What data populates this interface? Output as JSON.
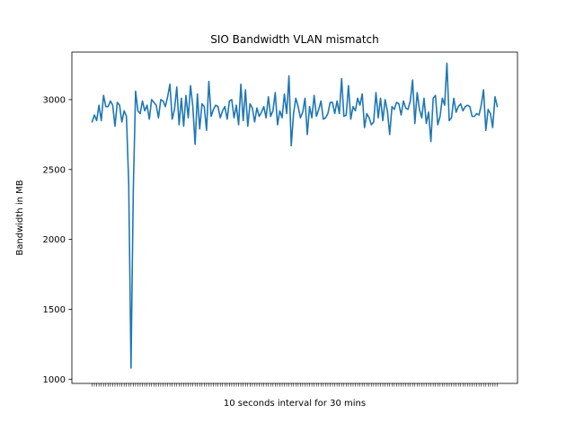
{
  "chart_data": {
    "type": "line",
    "title": "SIO Bandwidth VLAN mismatch",
    "xlabel": "10 seconds interval for 30 mins",
    "ylabel": "Bandwidth in MB",
    "xtick_labels_visible": false,
    "ylim": [
      970,
      3340
    ],
    "yticks": [
      1000,
      1500,
      2000,
      2500,
      3000
    ],
    "grid": false,
    "legend": "none",
    "colors": {
      "line": "#1f77b4",
      "axes": "#000000",
      "background": "#ffffff"
    },
    "series": [
      {
        "values": [
          2840,
          2890,
          2850,
          2960,
          2850,
          3030,
          2950,
          2950,
          2990,
          2960,
          2810,
          2980,
          2960,
          2840,
          2920,
          2880,
          2400,
          1080,
          2350,
          3060,
          2920,
          2900,
          2990,
          2920,
          2960,
          2860,
          3000,
          2980,
          2960,
          2870,
          3000,
          2990,
          2950,
          3020,
          3110,
          2860,
          2930,
          3090,
          2820,
          3010,
          2810,
          3030,
          2870,
          3100,
          2950,
          2680,
          3040,
          2790,
          2970,
          2950,
          2780,
          3130,
          2880,
          2930,
          2960,
          2950,
          2870,
          2920,
          2950,
          2860,
          2990,
          3000,
          2870,
          2960,
          2820,
          3110,
          2850,
          3070,
          2810,
          2970,
          2940,
          2840,
          2940,
          2880,
          2910,
          2950,
          2870,
          3020,
          2880,
          2920,
          3050,
          2820,
          2920,
          2870,
          3040,
          2900,
          3170,
          2670,
          2900,
          3010,
          2950,
          2870,
          2910,
          3010,
          2750,
          2950,
          2870,
          3030,
          2880,
          2930,
          2990,
          2860,
          2870,
          2900,
          2980,
          2980,
          2900,
          2990,
          2900,
          3150,
          2880,
          2890,
          3100,
          2860,
          2950,
          2920,
          3010,
          2960,
          3040,
          2800,
          2900,
          2870,
          2820,
          2840,
          3050,
          2870,
          3010,
          2850,
          3000,
          2920,
          2750,
          2950,
          2930,
          2980,
          2970,
          2890,
          2990,
          2940,
          2930,
          2990,
          3140,
          2830,
          3050,
          2930,
          2870,
          3010,
          2830,
          2910,
          2700,
          3010,
          3030,
          2820,
          2880,
          3010,
          2960,
          3260,
          2850,
          2870,
          3010,
          2910,
          2950,
          2970,
          2920,
          2950,
          2960,
          2950,
          2880,
          2880,
          2900,
          2890,
          2960,
          3070,
          2780,
          2930,
          2900,
          2800,
          3020,
          2950
        ]
      }
    ]
  }
}
